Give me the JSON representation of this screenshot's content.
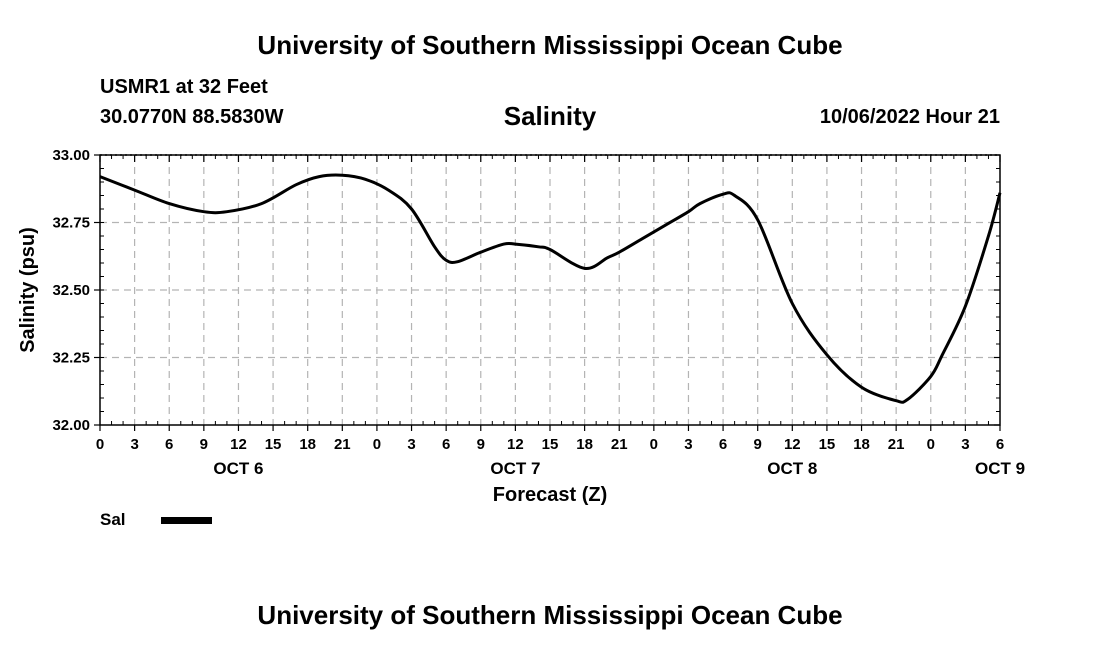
{
  "header": {
    "title": "University of Southern Mississippi Ocean Cube",
    "station": "USMR1 at 32 Feet",
    "coords": "30.0770N  88.5830W",
    "datetime": "10/06/2022 Hour 21"
  },
  "footer": {
    "title": "University of Southern Mississippi Ocean Cube"
  },
  "legend": {
    "label": "Sal"
  },
  "chart_data": {
    "type": "line",
    "title": "Salinity",
    "xlabel": "Forecast (Z)",
    "ylabel": "Salinity (psu)",
    "xlim": [
      0,
      78
    ],
    "ylim": [
      32.0,
      33.0
    ],
    "grid": true,
    "legend_position": "bottom-left",
    "x_ticks": [
      0,
      3,
      6,
      9,
      12,
      15,
      18,
      21,
      24,
      27,
      30,
      33,
      36,
      39,
      42,
      45,
      48,
      51,
      54,
      57,
      60,
      63,
      66,
      69,
      72,
      75,
      78
    ],
    "x_tick_labels": [
      "0",
      "3",
      "6",
      "9",
      "12",
      "15",
      "18",
      "21",
      "0",
      "3",
      "6",
      "9",
      "12",
      "15",
      "18",
      "21",
      "0",
      "3",
      "6",
      "9",
      "12",
      "15",
      "18",
      "21",
      "0",
      "3",
      "6"
    ],
    "y_ticks": [
      32.0,
      32.25,
      32.5,
      32.75,
      33.0
    ],
    "y_tick_labels": [
      "32.00",
      "32.25",
      "32.50",
      "32.75",
      "33.00"
    ],
    "date_labels": [
      {
        "x": 12,
        "label": "OCT 6"
      },
      {
        "x": 36,
        "label": "OCT 7"
      },
      {
        "x": 60,
        "label": "OCT 8"
      },
      {
        "x": 78,
        "label": "OCT 9"
      }
    ],
    "series": [
      {
        "name": "Sal",
        "x": [
          0,
          3,
          6,
          9,
          11,
          14,
          17,
          19,
          21,
          23,
          25,
          27,
          29,
          30,
          31,
          33,
          35,
          36,
          38,
          39,
          42,
          44,
          45,
          47,
          49,
          51,
          52,
          54,
          55,
          57,
          60,
          63,
          66,
          69,
          70,
          72,
          73,
          75,
          77,
          78
        ],
        "values": [
          32.92,
          32.87,
          32.82,
          32.79,
          32.79,
          32.82,
          32.89,
          32.92,
          32.925,
          32.91,
          32.87,
          32.8,
          32.66,
          32.61,
          32.605,
          32.64,
          32.67,
          32.67,
          32.66,
          32.65,
          32.58,
          32.62,
          32.64,
          32.69,
          32.74,
          32.79,
          32.82,
          32.855,
          32.85,
          32.76,
          32.45,
          32.26,
          32.14,
          32.09,
          32.095,
          32.18,
          32.26,
          32.44,
          32.7,
          32.86
        ]
      }
    ]
  }
}
